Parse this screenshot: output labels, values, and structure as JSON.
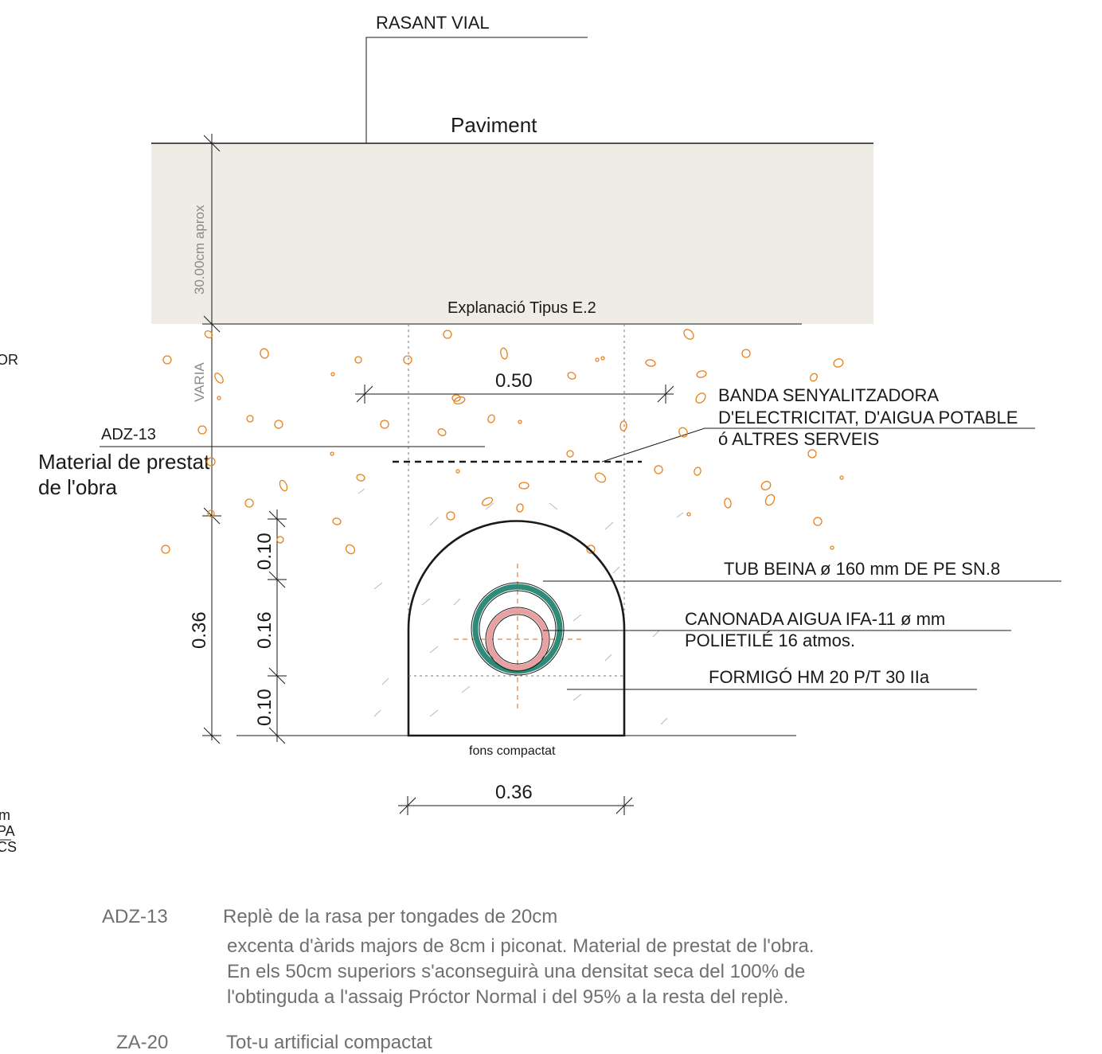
{
  "labels": {
    "rasant_vial": "RASANT VIAL",
    "paviment": "Paviment",
    "thickness_aprox": "30.00cm aprox",
    "explanacio": "Explanació Tipus E.2",
    "varia": "VARIA",
    "adz13": "ADZ-13",
    "material_line1": "Material de prestat",
    "material_line2": "de l'obra",
    "left_fragment_or": "OR",
    "left_fragment_m": "m",
    "left_fragment_pa": "PA",
    "left_fragment_cs": "CS",
    "fons_compactat": "fons compactat"
  },
  "dimensions": {
    "width_top": "0.50",
    "width_bottom": "0.36",
    "total_height": "0.36",
    "seg_top": "0.10",
    "seg_mid": "0.16",
    "seg_bottom": "0.10"
  },
  "callouts": {
    "banda_line1": "BANDA SENYALITZADORA",
    "banda_line2": "D'ELECTRICITAT, D'AIGUA POTABLE",
    "banda_line3": "ó ALTRES SERVEIS",
    "tub_beina": "TUB BEINA  ø 160 mm DE PE SN.8",
    "canonada_line1": "CANONADA AIGUA IFA-11 ø  mm",
    "canonada_line2": "POLIETILÉ 16 atmos.",
    "formigo": "FORMIGÓ HM 20 P/T 30 IIa"
  },
  "legend": [
    {
      "code": "ADZ-13",
      "lines": [
        "Replè de la rasa per tongades de 20cm",
        "excenta d'àrids majors de 8cm i piconat. Material de prestat de l'obra.",
        "En els 50cm superiors s'aconseguirà una densitat seca del 100% de",
        "l'obtinguda a l'assaig Próctor Normal i del 95% a la resta del replè."
      ]
    },
    {
      "code": "ZA-20",
      "lines": [
        "Tot-u artificial compactat"
      ]
    }
  ],
  "colors": {
    "pavement_fill": "#efebe5",
    "aggregate": "#e8801a",
    "sleeve_pipe": "#2e8b78",
    "water_pipe": "#e8a0a0",
    "axis_lines": "#d2691e",
    "line": "#1a1a1a"
  }
}
